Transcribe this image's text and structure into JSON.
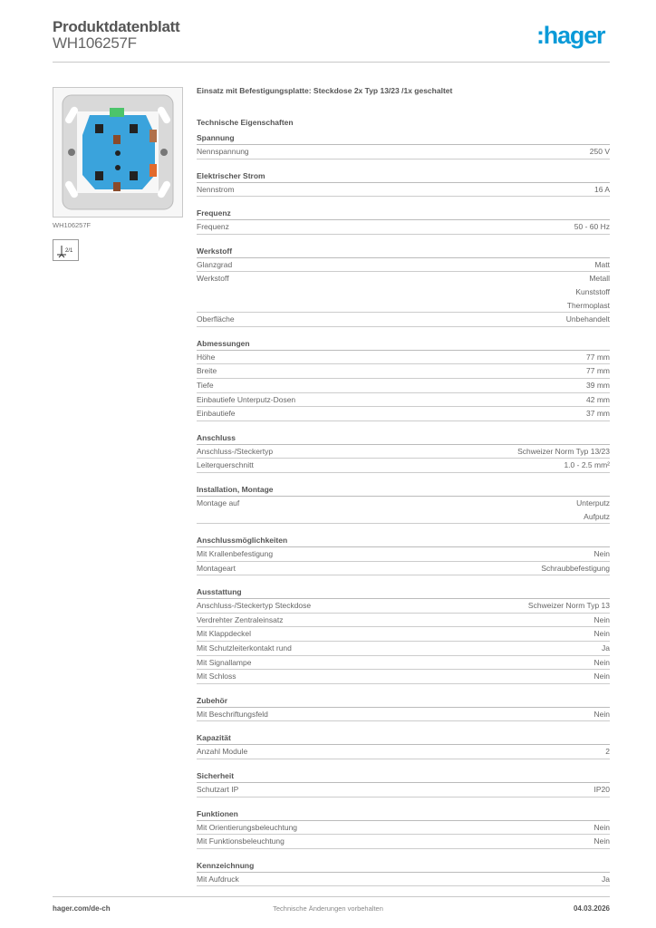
{
  "header": {
    "title": "Produktdatenblatt",
    "product_code": "WH106257F",
    "logo": ":hager",
    "brand_color": "#0a9ad8"
  },
  "image": {
    "caption": "WH106257F",
    "symbol_label": "2/1"
  },
  "description": "Einsatz mit Befestigungsplatte: Steckdose 2x Typ 13/23 /1x geschaltet",
  "tech_heading": "Technische Eigenschaften",
  "sections": [
    {
      "title": "Spannung",
      "rows": [
        {
          "label": "Nennspannung",
          "value": [
            "250 V"
          ]
        }
      ]
    },
    {
      "title": "Elektrischer Strom",
      "rows": [
        {
          "label": "Nennstrom",
          "value": [
            "16 A"
          ]
        }
      ]
    },
    {
      "title": "Frequenz",
      "rows": [
        {
          "label": "Frequenz",
          "value": [
            "50 - 60 Hz"
          ]
        }
      ]
    },
    {
      "title": "Werkstoff",
      "rows": [
        {
          "label": "Glanzgrad",
          "value": [
            "Matt"
          ]
        },
        {
          "label": "Werkstoff",
          "value": [
            "Metall",
            "Kunststoff",
            "Thermoplast"
          ]
        },
        {
          "label": "Oberfläche",
          "value": [
            "Unbehandelt"
          ]
        }
      ]
    },
    {
      "title": "Abmessungen",
      "rows": [
        {
          "label": "Höhe",
          "value": [
            "77 mm"
          ]
        },
        {
          "label": "Breite",
          "value": [
            "77 mm"
          ]
        },
        {
          "label": "Tiefe",
          "value": [
            "39 mm"
          ]
        },
        {
          "label": "Einbautiefe Unterputz-Dosen",
          "value": [
            "42 mm"
          ]
        },
        {
          "label": "Einbautiefe",
          "value": [
            "37 mm"
          ]
        }
      ]
    },
    {
      "title": "Anschluss",
      "rows": [
        {
          "label": "Anschluss-/Steckertyp",
          "value": [
            "Schweizer Norm Typ 13/23"
          ]
        },
        {
          "label": "Leiterquerschnitt",
          "value": [
            "1.0 - 2.5 mm²"
          ]
        }
      ]
    },
    {
      "title": "Installation, Montage",
      "rows": [
        {
          "label": "Montage auf",
          "value": [
            "Unterputz",
            "Aufputz"
          ]
        }
      ]
    },
    {
      "title": "Anschlussmöglichkeiten",
      "rows": [
        {
          "label": "Mit Krallenbefestigung",
          "value": [
            "Nein"
          ]
        },
        {
          "label": "Montageart",
          "value": [
            "Schraubbefestigung"
          ]
        }
      ]
    },
    {
      "title": "Ausstattung",
      "rows": [
        {
          "label": "Anschluss-/Steckertyp Steckdose",
          "value": [
            "Schweizer Norm Typ 13"
          ]
        },
        {
          "label": "Verdrehter Zentraleinsatz",
          "value": [
            "Nein"
          ]
        },
        {
          "label": "Mit Klappdeckel",
          "value": [
            "Nein"
          ]
        },
        {
          "label": "Mit Schutzleiterkontakt rund",
          "value": [
            "Ja"
          ]
        },
        {
          "label": "Mit Signallampe",
          "value": [
            "Nein"
          ]
        },
        {
          "label": "Mit Schloss",
          "value": [
            "Nein"
          ]
        }
      ]
    },
    {
      "title": "Zubehör",
      "rows": [
        {
          "label": "Mit Beschriftungsfeld",
          "value": [
            "Nein"
          ]
        }
      ]
    },
    {
      "title": "Kapazität",
      "rows": [
        {
          "label": "Anzahl Module",
          "value": [
            "2"
          ]
        }
      ]
    },
    {
      "title": "Sicherheit",
      "rows": [
        {
          "label": "Schutzart IP",
          "value": [
            "IP20"
          ]
        }
      ]
    },
    {
      "title": "Funktionen",
      "rows": [
        {
          "label": "Mit Orientierungsbeleuchtung",
          "value": [
            "Nein"
          ]
        },
        {
          "label": "Mit Funktionsbeleuchtung",
          "value": [
            "Nein"
          ]
        }
      ]
    },
    {
      "title": "Kennzeichnung",
      "rows": [
        {
          "label": "Mit Aufdruck",
          "value": [
            "Ja"
          ]
        }
      ]
    }
  ],
  "footer": {
    "website": "hager.com/de-ch",
    "note": "Technische Änderungen vorbehalten",
    "date": "04.03.2026"
  }
}
